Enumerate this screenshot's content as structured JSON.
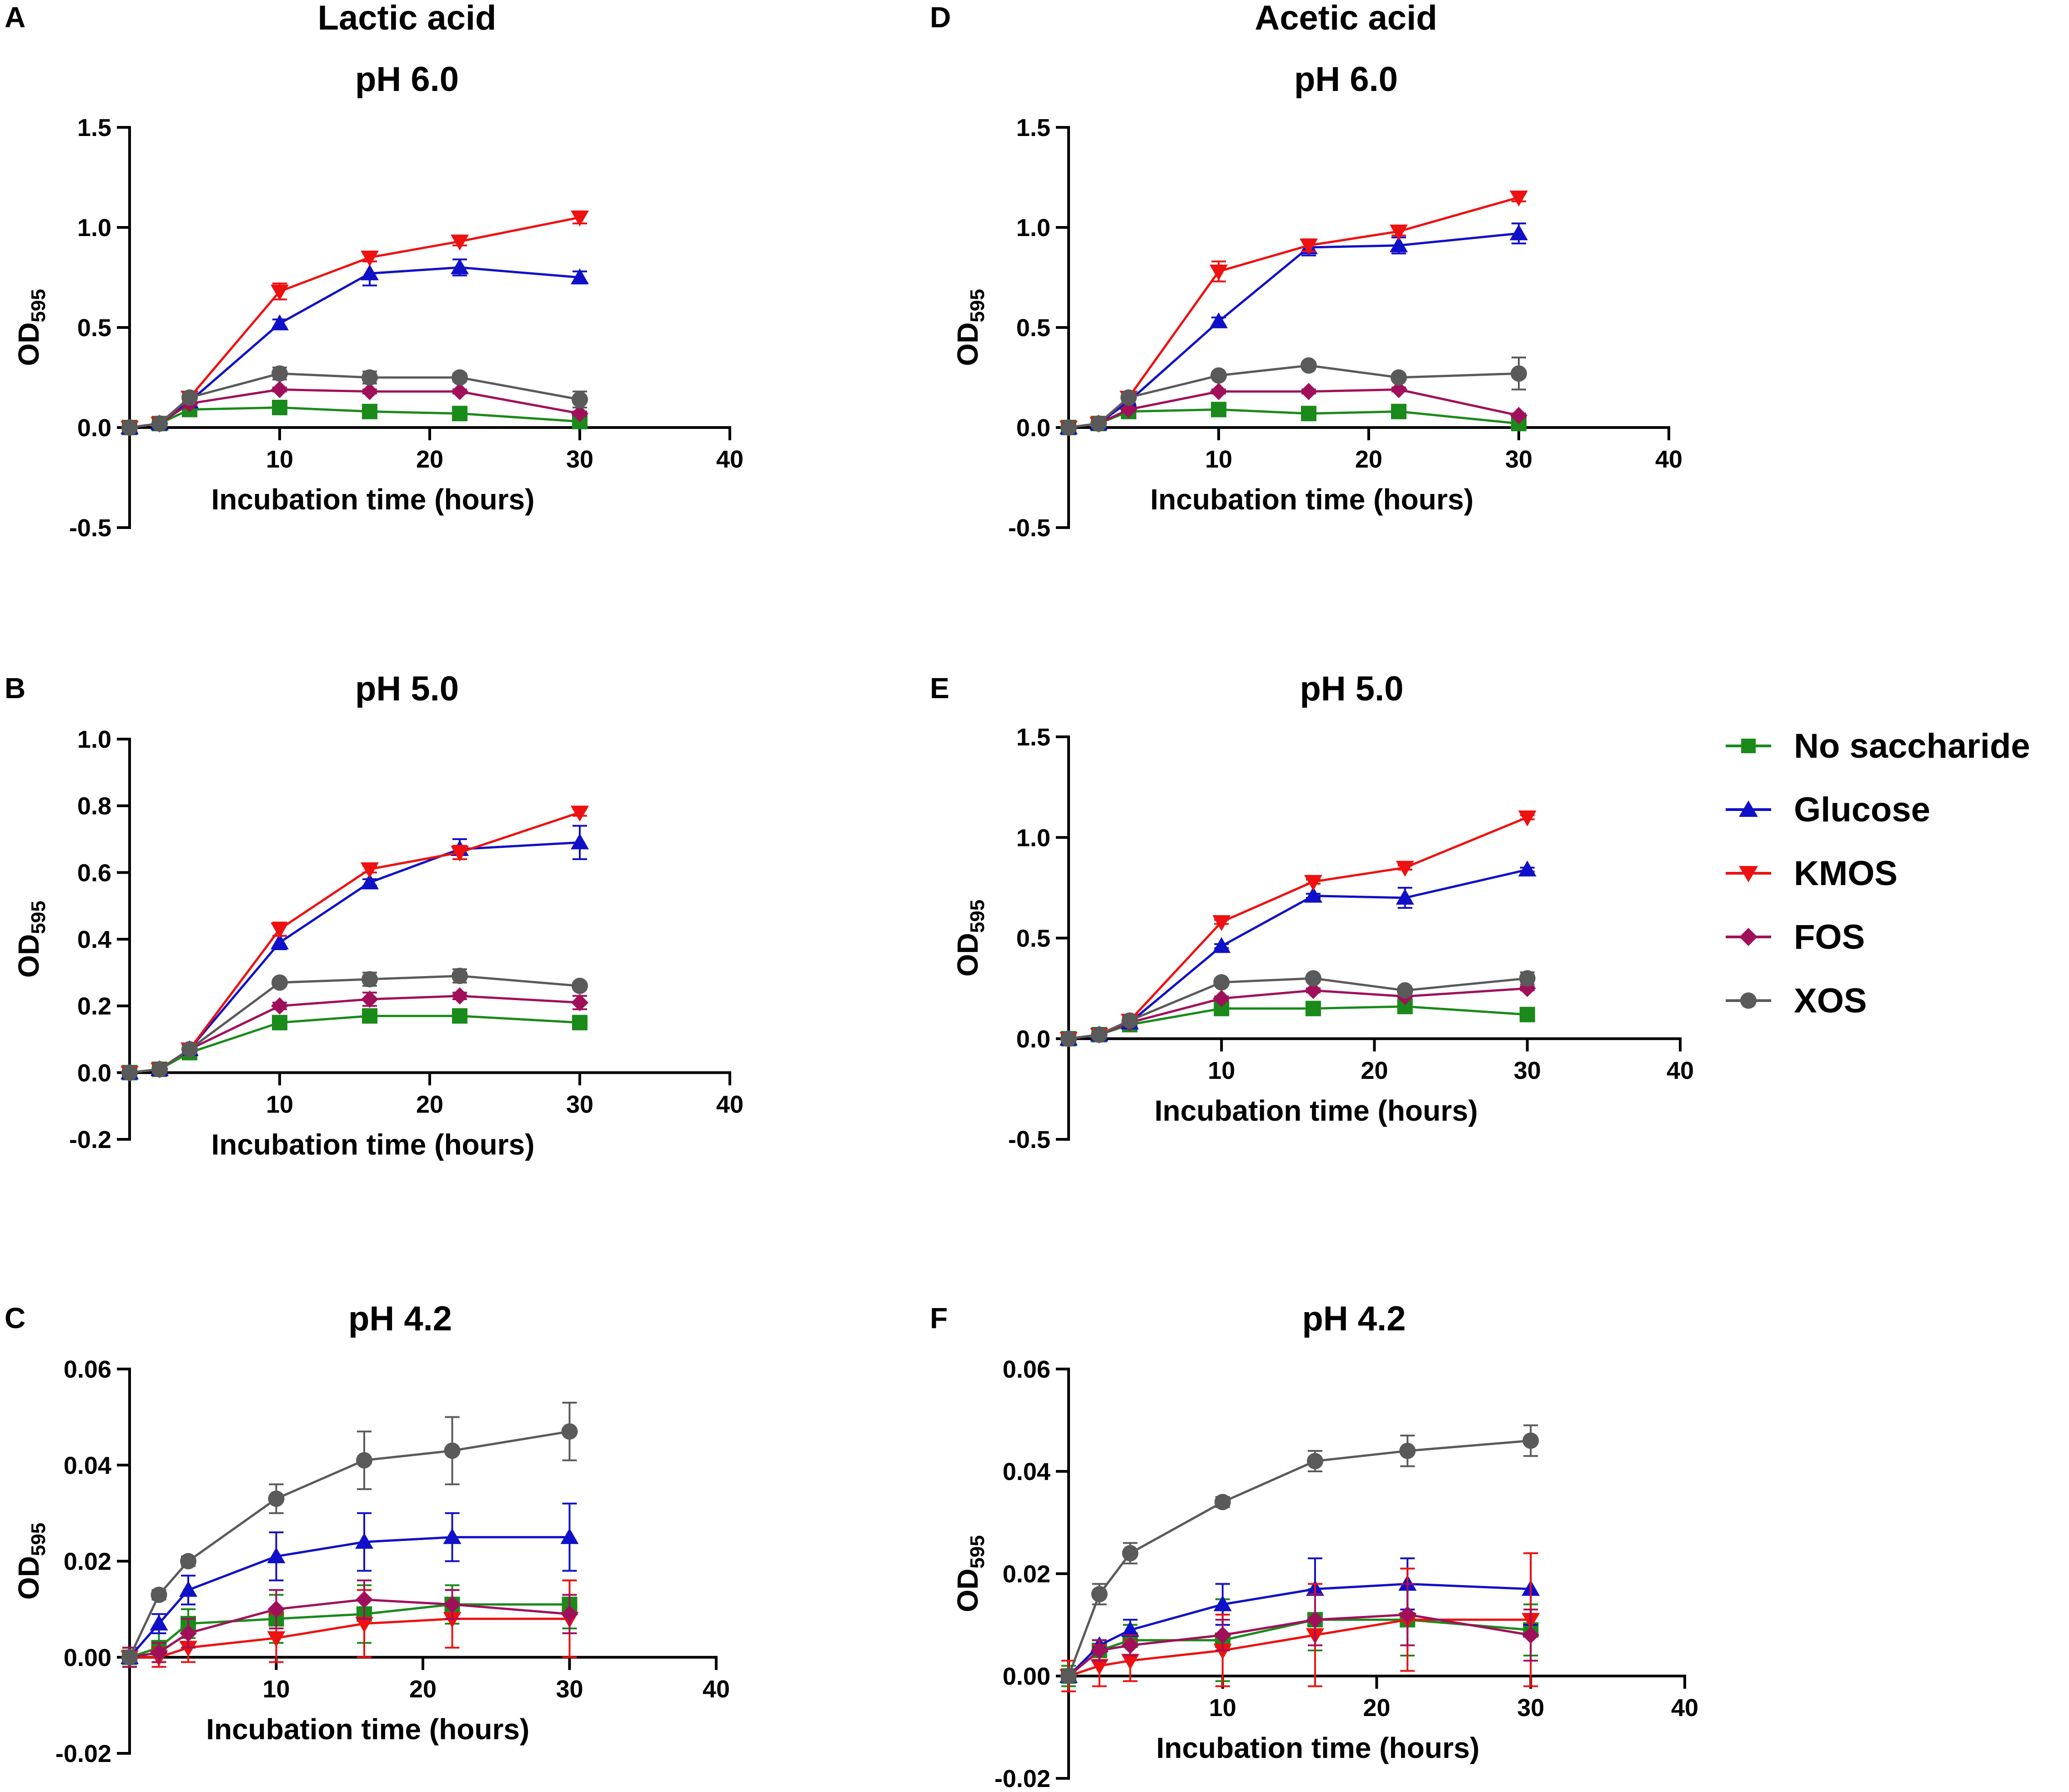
{
  "series_styles": [
    {
      "key": "none",
      "color": "#1a8a1a",
      "marker": "square"
    },
    {
      "key": "glucose",
      "color": "#1010c8",
      "marker": "triangle-up"
    },
    {
      "key": "kmos",
      "color": "#ee1111",
      "marker": "triangle-down"
    },
    {
      "key": "fos",
      "color": "#a0105a",
      "marker": "diamond"
    },
    {
      "key": "xos",
      "color": "#5a5a5a",
      "marker": "circle"
    }
  ],
  "legend": {
    "items": [
      "No saccharide",
      "Glucose",
      "KMOS",
      "FOS",
      "XOS"
    ]
  },
  "chart_data": [
    {
      "type": "line",
      "panel": "A",
      "group_title": "Lactic acid",
      "title": "pH 6.0",
      "xlabel": "Incubation time (hours)",
      "ylabel": "OD",
      "ylabel_sub": "595",
      "xlim": [
        0,
        40
      ],
      "ylim": [
        -0.5,
        1.5
      ],
      "xticks": [
        10,
        20,
        30,
        40
      ],
      "xtick_labels": [
        "10",
        "20",
        "30",
        "40"
      ],
      "yticks": [
        -0.5,
        0,
        0.5,
        1.0,
        1.5
      ],
      "ytick_labels": [
        "-0.5",
        "0.0",
        "0.5",
        "1.0",
        "1.5"
      ],
      "x": [
        0,
        2,
        4,
        10,
        16,
        22,
        30
      ],
      "series": [
        {
          "name": "No saccharide",
          "values": [
            0.0,
            0.02,
            0.09,
            0.1,
            0.08,
            0.07,
            0.03
          ],
          "errors": [
            0,
            0,
            0.01,
            0.01,
            0.01,
            0.01,
            0.01
          ]
        },
        {
          "name": "Glucose",
          "values": [
            0.0,
            0.02,
            0.13,
            0.52,
            0.77,
            0.8,
            0.75
          ],
          "errors": [
            0,
            0,
            0.01,
            0.02,
            0.06,
            0.04,
            0.03
          ]
        },
        {
          "name": "KMOS",
          "values": [
            0.0,
            0.02,
            0.15,
            0.68,
            0.85,
            0.93,
            1.05
          ],
          "errors": [
            0,
            0,
            0.01,
            0.04,
            0.02,
            0.02,
            0.03
          ]
        },
        {
          "name": "FOS",
          "values": [
            0.0,
            0.02,
            0.12,
            0.19,
            0.18,
            0.18,
            0.07
          ],
          "errors": [
            0,
            0,
            0.01,
            0.01,
            0.01,
            0.01,
            0.01
          ]
        },
        {
          "name": "XOS",
          "values": [
            0.0,
            0.02,
            0.15,
            0.27,
            0.25,
            0.25,
            0.14
          ],
          "errors": [
            0,
            0,
            0.01,
            0.03,
            0.03,
            0.02,
            0.04
          ]
        }
      ]
    },
    {
      "type": "line",
      "panel": "B",
      "group_title": "",
      "title": "pH 5.0",
      "xlabel": "Incubation time (hours)",
      "ylabel": "OD",
      "ylabel_sub": "595",
      "xlim": [
        0,
        40
      ],
      "ylim": [
        -0.2,
        1.0
      ],
      "xticks": [
        10,
        20,
        30,
        40
      ],
      "xtick_labels": [
        "10",
        "20",
        "30",
        "40"
      ],
      "yticks": [
        -0.2,
        0,
        0.2,
        0.4,
        0.6,
        0.8,
        1.0
      ],
      "ytick_labels": [
        "-0.2",
        "0.0",
        "0.2",
        "0.4",
        "0.6",
        "0.8",
        "1.0"
      ],
      "x": [
        0,
        2,
        4,
        10,
        16,
        22,
        30
      ],
      "series": [
        {
          "name": "No saccharide",
          "values": [
            0.0,
            0.01,
            0.06,
            0.15,
            0.17,
            0.17,
            0.15
          ],
          "errors": [
            0,
            0,
            0.01,
            0.01,
            0.02,
            0.01,
            0.02
          ]
        },
        {
          "name": "Glucose",
          "values": [
            0.0,
            0.01,
            0.07,
            0.39,
            0.57,
            0.67,
            0.69
          ],
          "errors": [
            0,
            0,
            0.01,
            0.02,
            0.01,
            0.03,
            0.05
          ]
        },
        {
          "name": "KMOS",
          "values": [
            0.0,
            0.01,
            0.07,
            0.43,
            0.61,
            0.66,
            0.78
          ],
          "errors": [
            0,
            0,
            0.01,
            0.02,
            0.01,
            0.02,
            0.01
          ]
        },
        {
          "name": "FOS",
          "values": [
            0.0,
            0.01,
            0.07,
            0.2,
            0.22,
            0.23,
            0.21
          ],
          "errors": [
            0,
            0,
            0.01,
            0.01,
            0.02,
            0.01,
            0.02
          ]
        },
        {
          "name": "XOS",
          "values": [
            0.0,
            0.01,
            0.07,
            0.27,
            0.28,
            0.29,
            0.26
          ],
          "errors": [
            0,
            0,
            0.01,
            0.01,
            0.02,
            0.02,
            0.01
          ]
        }
      ]
    },
    {
      "type": "line",
      "panel": "C",
      "group_title": "",
      "title": "pH 4.2",
      "xlabel": "Incubation time (hours)",
      "ylabel": "OD",
      "ylabel_sub": "595",
      "xlim": [
        0,
        40
      ],
      "ylim": [
        -0.02,
        0.06
      ],
      "xticks": [
        10,
        20,
        30,
        40
      ],
      "xtick_labels": [
        "10",
        "20",
        "30",
        "40"
      ],
      "yticks": [
        -0.02,
        0,
        0.02,
        0.04,
        0.06
      ],
      "ytick_labels": [
        "-0.02",
        "0.00",
        "0.02",
        "0.04",
        "0.06"
      ],
      "x": [
        0,
        2,
        4,
        10,
        16,
        22,
        30
      ],
      "series": [
        {
          "name": "No saccharide",
          "values": [
            0.0,
            0.002,
            0.007,
            0.008,
            0.009,
            0.011,
            0.011
          ],
          "errors": [
            0.002,
            0.003,
            0.003,
            0.005,
            0.006,
            0.004,
            0.005
          ]
        },
        {
          "name": "Glucose",
          "values": [
            0.0,
            0.007,
            0.014,
            0.021,
            0.024,
            0.025,
            0.025
          ],
          "errors": [
            0.002,
            0.002,
            0.003,
            0.005,
            0.006,
            0.005,
            0.007
          ]
        },
        {
          "name": "KMOS",
          "values": [
            0.0,
            0.0,
            0.002,
            0.004,
            0.007,
            0.008,
            0.008
          ],
          "errors": [
            0.002,
            0.002,
            0.003,
            0.005,
            0.007,
            0.006,
            0.008
          ]
        },
        {
          "name": "FOS",
          "values": [
            0.0,
            0.001,
            0.005,
            0.01,
            0.012,
            0.011,
            0.009
          ],
          "errors": [
            0.002,
            0.002,
            0.003,
            0.004,
            0.004,
            0.003,
            0.004
          ]
        },
        {
          "name": "XOS",
          "values": [
            0.0,
            0.013,
            0.02,
            0.033,
            0.041,
            0.043,
            0.047
          ],
          "errors": [
            0.001,
            0.001,
            0.001,
            0.003,
            0.006,
            0.007,
            0.006
          ]
        }
      ]
    },
    {
      "type": "line",
      "panel": "D",
      "group_title": "Acetic acid",
      "title": "pH 6.0",
      "xlabel": "Incubation time (hours)",
      "ylabel": "OD",
      "ylabel_sub": "595",
      "xlim": [
        0,
        40
      ],
      "ylim": [
        -0.5,
        1.5
      ],
      "xticks": [
        10,
        20,
        30,
        40
      ],
      "xtick_labels": [
        "10",
        "20",
        "30",
        "40"
      ],
      "yticks": [
        -0.5,
        0,
        0.5,
        1.0,
        1.5
      ],
      "ytick_labels": [
        "-0.5",
        "0.0",
        "0.5",
        "1.0",
        "1.5"
      ],
      "x": [
        0,
        2,
        4,
        10,
        16,
        22,
        30
      ],
      "series": [
        {
          "name": "No saccharide",
          "values": [
            0.0,
            0.02,
            0.08,
            0.09,
            0.07,
            0.08,
            0.02
          ],
          "errors": [
            0,
            0,
            0.01,
            0.01,
            0.01,
            0.01,
            0.01
          ]
        },
        {
          "name": "Glucose",
          "values": [
            0.0,
            0.02,
            0.13,
            0.53,
            0.9,
            0.91,
            0.97
          ],
          "errors": [
            0,
            0,
            0.01,
            0.02,
            0.04,
            0.04,
            0.05
          ]
        },
        {
          "name": "KMOS",
          "values": [
            0.0,
            0.02,
            0.15,
            0.78,
            0.91,
            0.98,
            1.15
          ],
          "errors": [
            0,
            0,
            0.01,
            0.05,
            0.03,
            0.02,
            0.02
          ]
        },
        {
          "name": "FOS",
          "values": [
            0.0,
            0.02,
            0.09,
            0.18,
            0.18,
            0.19,
            0.06
          ],
          "errors": [
            0,
            0,
            0.01,
            0.01,
            0.01,
            0.01,
            0.01
          ]
        },
        {
          "name": "XOS",
          "values": [
            0.0,
            0.02,
            0.15,
            0.26,
            0.31,
            0.25,
            0.27
          ],
          "errors": [
            0,
            0,
            0.01,
            0.01,
            0.01,
            0.01,
            0.08
          ]
        }
      ]
    },
    {
      "type": "line",
      "panel": "E",
      "group_title": "",
      "title": "pH 5.0",
      "xlabel": "Incubation time (hours)",
      "ylabel": "OD",
      "ylabel_sub": "595",
      "xlim": [
        0,
        40
      ],
      "ylim": [
        -0.5,
        1.5
      ],
      "xticks": [
        10,
        20,
        30,
        40
      ],
      "xtick_labels": [
        "10",
        "20",
        "30",
        "40"
      ],
      "yticks": [
        -0.5,
        0,
        0.5,
        1.0,
        1.5
      ],
      "ytick_labels": [
        "-0.5",
        "0.0",
        "0.5",
        "1.0",
        "1.5"
      ],
      "x": [
        0,
        2,
        4,
        10,
        16,
        22,
        30
      ],
      "series": [
        {
          "name": "No saccharide",
          "values": [
            0.0,
            0.02,
            0.07,
            0.15,
            0.15,
            0.16,
            0.12
          ],
          "errors": [
            0,
            0,
            0.01,
            0.01,
            0.01,
            0.01,
            0.01
          ]
        },
        {
          "name": "Glucose",
          "values": [
            0.0,
            0.02,
            0.08,
            0.46,
            0.71,
            0.7,
            0.84
          ],
          "errors": [
            0,
            0,
            0.01,
            0.01,
            0.01,
            0.05,
            0.01
          ]
        },
        {
          "name": "KMOS",
          "values": [
            0.0,
            0.02,
            0.09,
            0.58,
            0.78,
            0.85,
            1.1
          ],
          "errors": [
            0,
            0,
            0.01,
            0.01,
            0.01,
            0.01,
            0.01
          ]
        },
        {
          "name": "FOS",
          "values": [
            0.0,
            0.02,
            0.08,
            0.2,
            0.24,
            0.21,
            0.25
          ],
          "errors": [
            0,
            0,
            0.01,
            0.01,
            0.01,
            0.01,
            0.01
          ]
        },
        {
          "name": "XOS",
          "values": [
            0.0,
            0.02,
            0.09,
            0.28,
            0.3,
            0.24,
            0.3
          ],
          "errors": [
            0,
            0,
            0.01,
            0.01,
            0.01,
            0.01,
            0.03
          ]
        }
      ]
    },
    {
      "type": "line",
      "panel": "F",
      "group_title": "",
      "title": "pH 4.2",
      "xlabel": "Incubation time (hours)",
      "ylabel": "OD",
      "ylabel_sub": "595",
      "xlim": [
        0,
        40
      ],
      "ylim": [
        -0.02,
        0.06
      ],
      "xticks": [
        10,
        20,
        30,
        40
      ],
      "xtick_labels": [
        "10",
        "20",
        "30",
        "40"
      ],
      "yticks": [
        -0.02,
        0,
        0.02,
        0.04,
        0.06
      ],
      "ytick_labels": [
        "-0.02",
        "0.00",
        "0.02",
        "0.04",
        "0.06"
      ],
      "x": [
        0,
        2,
        4,
        10,
        16,
        22,
        30
      ],
      "series": [
        {
          "name": "No saccharide",
          "values": [
            0.0,
            0.005,
            0.007,
            0.007,
            0.011,
            0.011,
            0.009
          ],
          "errors": [
            0.002,
            0.002,
            0.003,
            0.008,
            0.006,
            0.007,
            0.005
          ]
        },
        {
          "name": "Glucose",
          "values": [
            0.0,
            0.006,
            0.009,
            0.014,
            0.017,
            0.018,
            0.017
          ],
          "errors": [
            0.001,
            0.001,
            0.002,
            0.004,
            0.006,
            0.005,
            0.007
          ]
        },
        {
          "name": "KMOS",
          "values": [
            0.0,
            0.002,
            0.003,
            0.005,
            0.008,
            0.011,
            0.011
          ],
          "errors": [
            0.003,
            0.004,
            0.004,
            0.007,
            0.01,
            0.01,
            0.013
          ]
        },
        {
          "name": "FOS",
          "values": [
            0.0,
            0.005,
            0.006,
            0.008,
            0.011,
            0.012,
            0.008
          ],
          "errors": [
            0.001,
            0.002,
            0.002,
            0.003,
            0.005,
            0.006,
            0.005
          ]
        },
        {
          "name": "XOS",
          "values": [
            0.0,
            0.016,
            0.024,
            0.034,
            0.042,
            0.044,
            0.046
          ],
          "errors": [
            0.001,
            0.002,
            0.002,
            0.001,
            0.002,
            0.003,
            0.003
          ]
        }
      ]
    }
  ]
}
